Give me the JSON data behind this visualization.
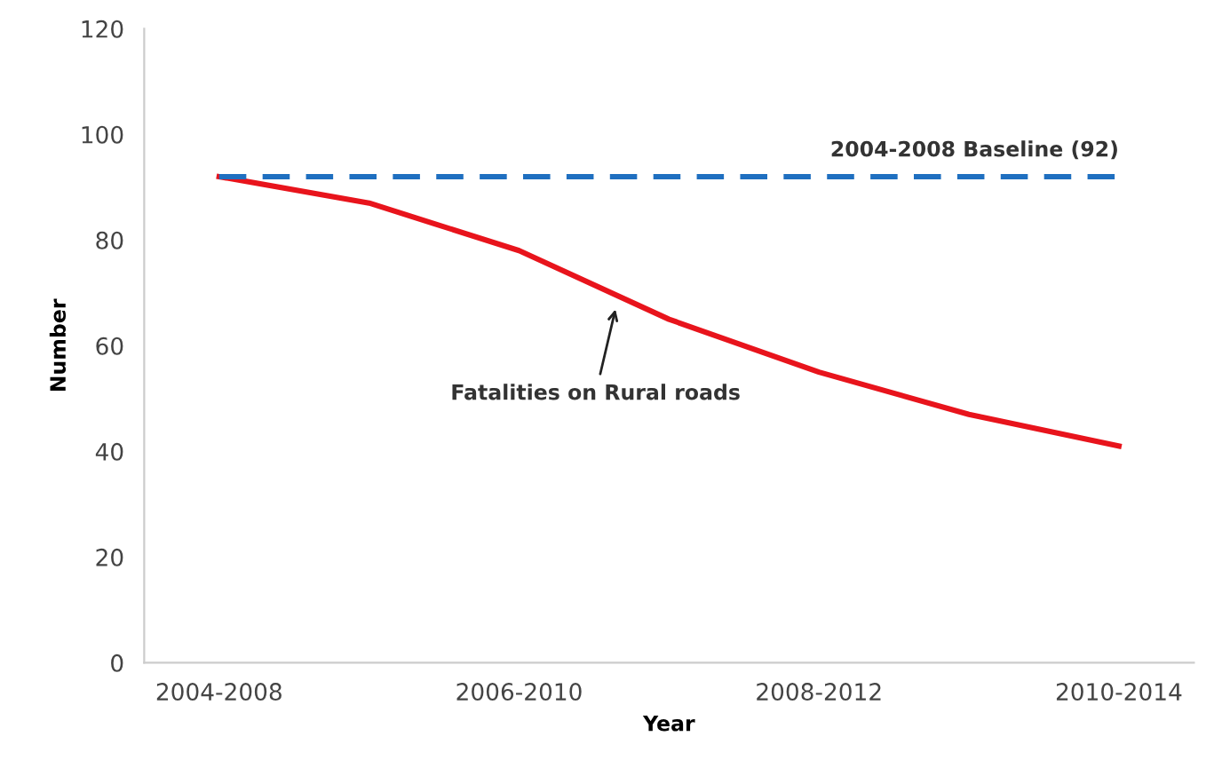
{
  "chart_data": {
    "type": "line",
    "xlabel": "Year",
    "ylabel": "Number",
    "categories": [
      "2004-2008",
      null,
      "2006-2010",
      null,
      "2008-2012",
      null,
      "2010-2014"
    ],
    "series": [
      {
        "color": "#e8141c",
        "values": [
          92,
          87,
          78,
          65,
          55,
          47,
          41
        ]
      }
    ],
    "ylim": [
      0,
      120
    ],
    "yticks": [
      0,
      20,
      40,
      60,
      80,
      100,
      120
    ],
    "grid": false,
    "legend": false,
    "marker": "none",
    "line_style": "solid",
    "ref_lines": [
      {
        "axis": "y",
        "value": 92,
        "label": "2004-2008 Baseline (92)",
        "color": "#1f6fc0",
        "line_style": "dashed"
      }
    ],
    "annotations": [
      "Fatalities on Rural roads"
    ]
  }
}
